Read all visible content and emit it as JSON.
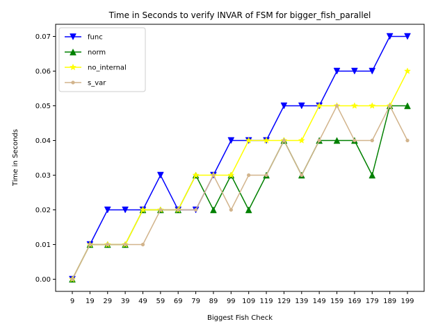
{
  "chart_data": {
    "type": "line",
    "title": "Time in Seconds to verify INVAR of FSM for bigger_fish_parallel",
    "xlabel": "Biggest Fish Check",
    "ylabel": "Time in Seconds",
    "categories": [
      "9",
      "19",
      "29",
      "39",
      "49",
      "59",
      "69",
      "79",
      "89",
      "99",
      "109",
      "119",
      "129",
      "139",
      "149",
      "159",
      "169",
      "179",
      "189",
      "199"
    ],
    "ylim": [
      -0.0035,
      0.0735
    ],
    "yticks": [
      "0.00",
      "0.01",
      "0.02",
      "0.03",
      "0.04",
      "0.05",
      "0.06",
      "0.07"
    ],
    "grid": false,
    "legend_position": "top-left",
    "series": [
      {
        "name": "func",
        "color": "#0000ff",
        "marker": "triangle-down",
        "values": [
          0.0,
          0.01,
          0.02,
          0.02,
          0.02,
          0.03,
          0.02,
          0.02,
          0.03,
          0.04,
          0.04,
          0.04,
          0.05,
          0.05,
          0.05,
          0.06,
          0.06,
          0.06,
          0.07,
          0.07
        ]
      },
      {
        "name": "norm",
        "color": "#008000",
        "marker": "triangle-up",
        "values": [
          0.0,
          0.01,
          0.01,
          0.01,
          0.02,
          0.02,
          0.02,
          0.03,
          0.02,
          0.03,
          0.02,
          0.03,
          0.04,
          0.03,
          0.04,
          0.04,
          0.04,
          0.03,
          0.05,
          0.05
        ]
      },
      {
        "name": "no_internal",
        "color": "#ffff00",
        "marker": "star",
        "values": [
          0.0,
          0.01,
          0.01,
          0.01,
          0.02,
          0.02,
          0.02,
          0.03,
          0.03,
          0.03,
          0.04,
          0.04,
          0.04,
          0.04,
          0.05,
          0.05,
          0.05,
          0.05,
          0.05,
          0.06
        ]
      },
      {
        "name": "s_var",
        "color": "#d2b48c",
        "marker": "circle",
        "values": [
          0.0,
          0.01,
          0.01,
          0.01,
          0.01,
          0.02,
          0.02,
          0.02,
          0.03,
          0.02,
          0.03,
          0.03,
          0.04,
          0.03,
          0.04,
          0.05,
          0.04,
          0.04,
          0.05,
          0.04
        ]
      }
    ]
  }
}
